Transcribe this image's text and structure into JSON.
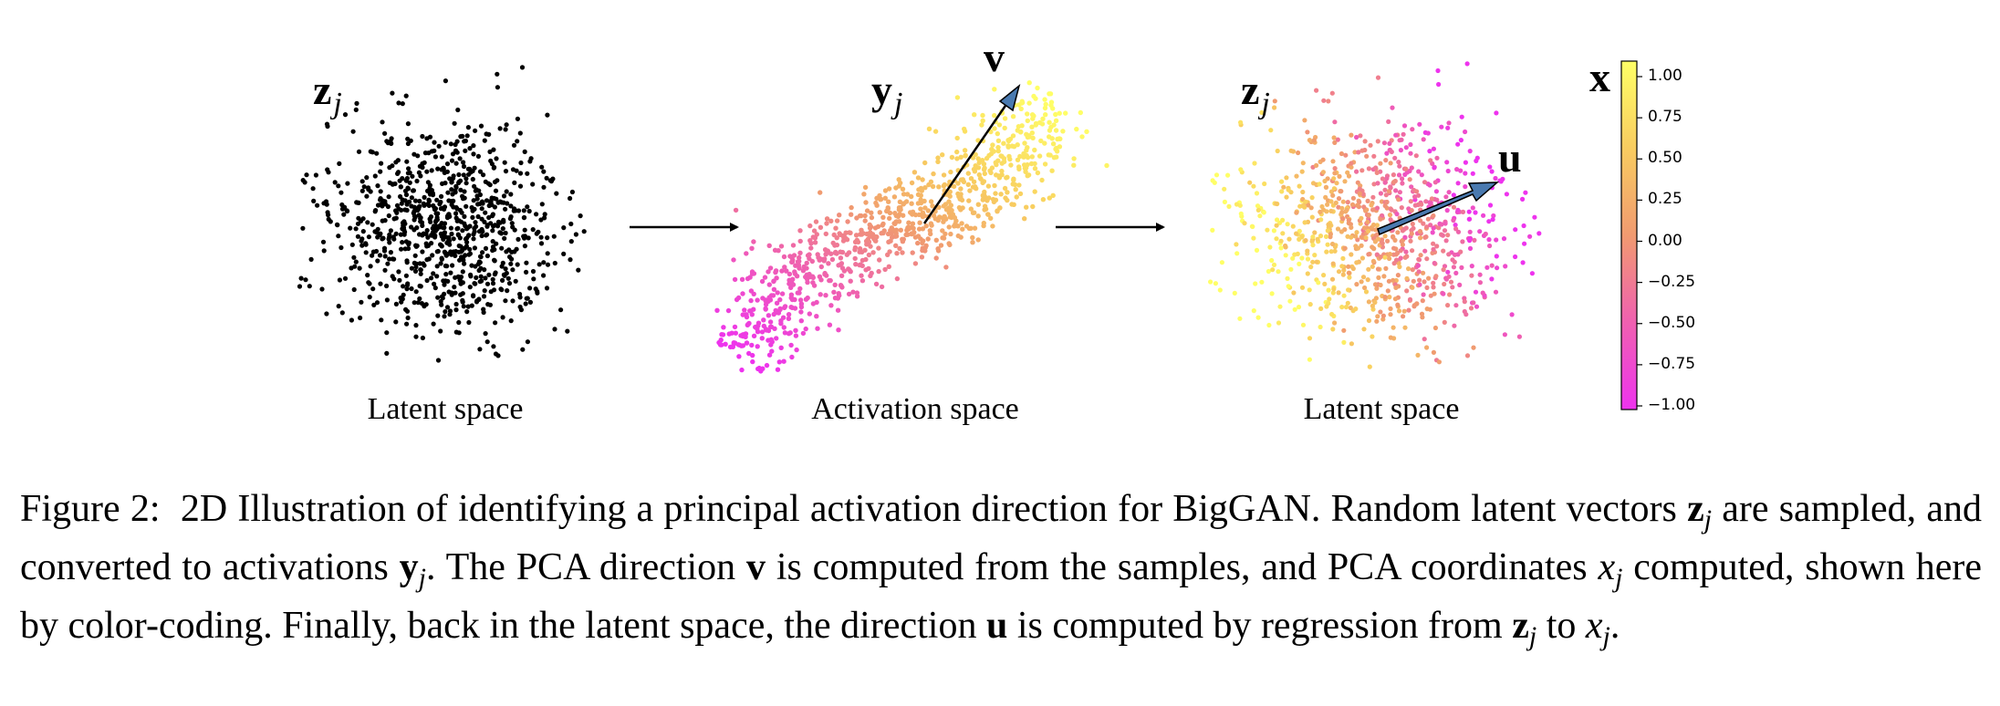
{
  "figure": {
    "panels": [
      {
        "label": "Latent space",
        "var_main": "z",
        "var_sub": "j"
      },
      {
        "label": "Activation space",
        "var_main": "y",
        "var_sub": "j",
        "arrow_label": "v"
      },
      {
        "label": "Latent space",
        "var_main": "z",
        "var_sub": "j",
        "arrow_label": "u"
      }
    ],
    "colorbar": {
      "label": "x",
      "ticks": [
        "1.00",
        "0.75",
        "0.50",
        "0.25",
        "0.00",
        "−0.25",
        "−0.50",
        "−0.75",
        "−1.00"
      ]
    },
    "colors": {
      "latent_points": "#000000",
      "cmap_high": "#ffff66",
      "cmap_mid": "#f0a060",
      "cmap_low": "#ee33ee",
      "arrow_fill": "#4a7ab0"
    }
  },
  "caption": {
    "prefix": "Figure 2:",
    "t1": "2D Illustration of identifying a principal activation direction for BigGAN. Random latent vectors ",
    "z": "z",
    "j": "j",
    "t2": " are sampled, and converted to activations ",
    "y": "y",
    "t3": ". The PCA direction ",
    "v": "v",
    "t4": " is computed from the samples, and PCA coordinates ",
    "x": "x",
    "t5": " computed, shown here by color-coding. Finally, back in the latent space, the direction ",
    "u": "u",
    "t6": " is computed by regression from ",
    "t7": " to ",
    "t8": "."
  }
}
